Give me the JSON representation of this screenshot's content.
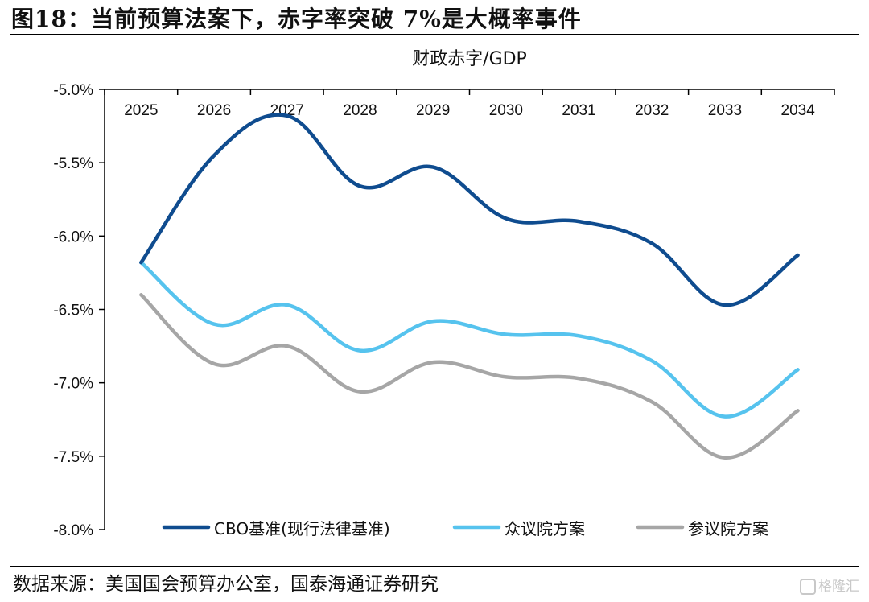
{
  "figure": {
    "title": "图18：当前预算法案下，赤字率突破 7%是大概率事件",
    "source": "数据来源：美国国会预算办公室，国泰海通证券研究",
    "watermark": "格隆汇"
  },
  "chart_data": {
    "type": "line",
    "title": "财政赤字/GDP",
    "xlabel": "",
    "ylabel": "",
    "categories": [
      "2025",
      "2026",
      "2027",
      "2028",
      "2029",
      "2030",
      "2031",
      "2032",
      "2033",
      "2034"
    ],
    "ylim": [
      -8.0,
      -5.0
    ],
    "yticks": [
      -5.0,
      -5.5,
      -6.0,
      -6.5,
      -7.0,
      -7.5,
      -8.0
    ],
    "ytick_labels": [
      "-5.0%",
      "-5.5%",
      "-6.0%",
      "-6.5%",
      "-7.0%",
      "-7.5%",
      "-8.0%"
    ],
    "x_axis_position": "top",
    "grid": false,
    "legend_position": "bottom",
    "series": [
      {
        "name": "CBO基准(现行法律基准)",
        "color": "#0f4c8f",
        "values": [
          -6.18,
          -5.45,
          -5.18,
          -5.66,
          -5.53,
          -5.88,
          -5.9,
          -6.05,
          -6.47,
          -6.13
        ]
      },
      {
        "name": "众议院方案",
        "color": "#56c3ee",
        "values": [
          -6.18,
          -6.6,
          -6.47,
          -6.78,
          -6.58,
          -6.67,
          -6.68,
          -6.85,
          -7.23,
          -6.91
        ]
      },
      {
        "name": "参议院方案",
        "color": "#a6a6a6",
        "values": [
          -6.4,
          -6.87,
          -6.75,
          -7.06,
          -6.86,
          -6.96,
          -6.97,
          -7.13,
          -7.51,
          -7.19
        ]
      }
    ]
  }
}
